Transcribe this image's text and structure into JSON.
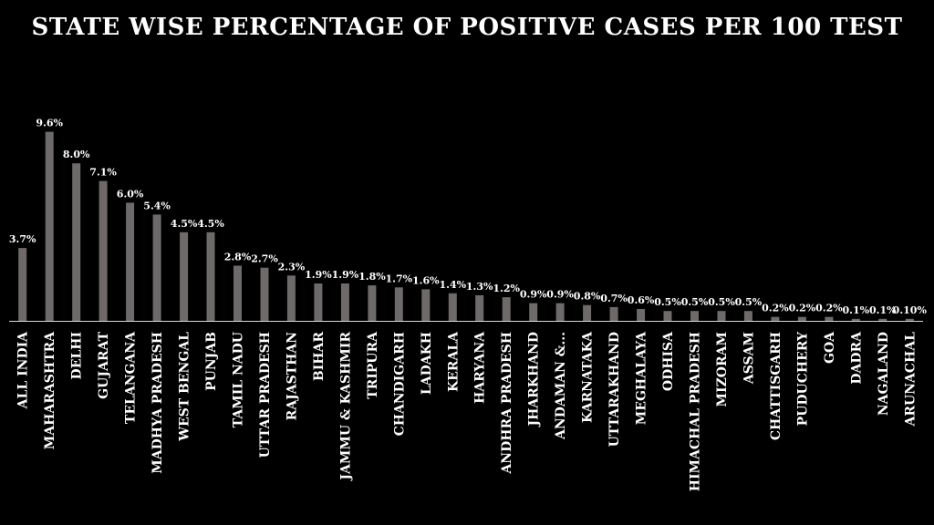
{
  "chart_data": {
    "type": "bar",
    "title": "STATE WISE PERCENTAGE OF POSITIVE CASES PER 100 TEST",
    "xlabel": "",
    "ylabel": "",
    "ylim": [
      0,
      10
    ],
    "grid": false,
    "legend": "none",
    "colors": {
      "background": "#000000",
      "bar": "#6f6a6a",
      "text": "#ffffff",
      "axis": "#d9d9d9"
    },
    "categories": [
      "ALL INDIA",
      "MAHARASHTRA",
      "DELHI",
      "GUJARAT",
      "TELANGANA",
      "MADHYA PRADESH",
      "WEST BENGAL",
      "PUNJAB",
      "TAMIL NADU",
      "UTTAR PRADESH",
      "RAJASTHAN",
      "BIHAR",
      "JAMMU & KASHMIR",
      "TRIPURA",
      "CHANDIGARH",
      "LADAKH",
      "KERALA",
      "HARYANA",
      "ANDHRA PRADESH",
      "JHARKHAND",
      "ANDAMAN &...",
      "KARNATAKA",
      "UTTARAKHAND",
      "MEGHALAYA",
      "ODHISA",
      "HIMACHAL PRADESH",
      "MIZORAM",
      "ASSAM",
      "CHATTISGARH",
      "PUDUCHERY",
      "GOA",
      "DADRA",
      "NAGALAND",
      "ARUNACHAL"
    ],
    "values": [
      3.7,
      9.6,
      8.0,
      7.1,
      6.0,
      5.4,
      4.5,
      4.5,
      2.8,
      2.7,
      2.3,
      1.9,
      1.9,
      1.8,
      1.7,
      1.6,
      1.4,
      1.3,
      1.2,
      0.9,
      0.9,
      0.8,
      0.7,
      0.6,
      0.5,
      0.5,
      0.5,
      0.5,
      0.2,
      0.2,
      0.2,
      0.1,
      0.1,
      0.1
    ],
    "labels": [
      "3.7%",
      "9.6%",
      "8.0%",
      "7.1%",
      "6.0%",
      "5.4%",
      "4.5%",
      "4.5%",
      "2.8%",
      "2.7%",
      "2.3%",
      "1.9%",
      "1.9%",
      "1.8%",
      "1.7%",
      "1.6%",
      "1.4%",
      "1.3%",
      "1.2%",
      "0.9%",
      "0.9%",
      "0.8%",
      "0.7%",
      "0.6%",
      "0.5%",
      "0.5%",
      "0.5%",
      "0.5%",
      "0.2%",
      "0.2%",
      "0.2%",
      "0.1%",
      "0.1%",
      "0.10%"
    ]
  }
}
